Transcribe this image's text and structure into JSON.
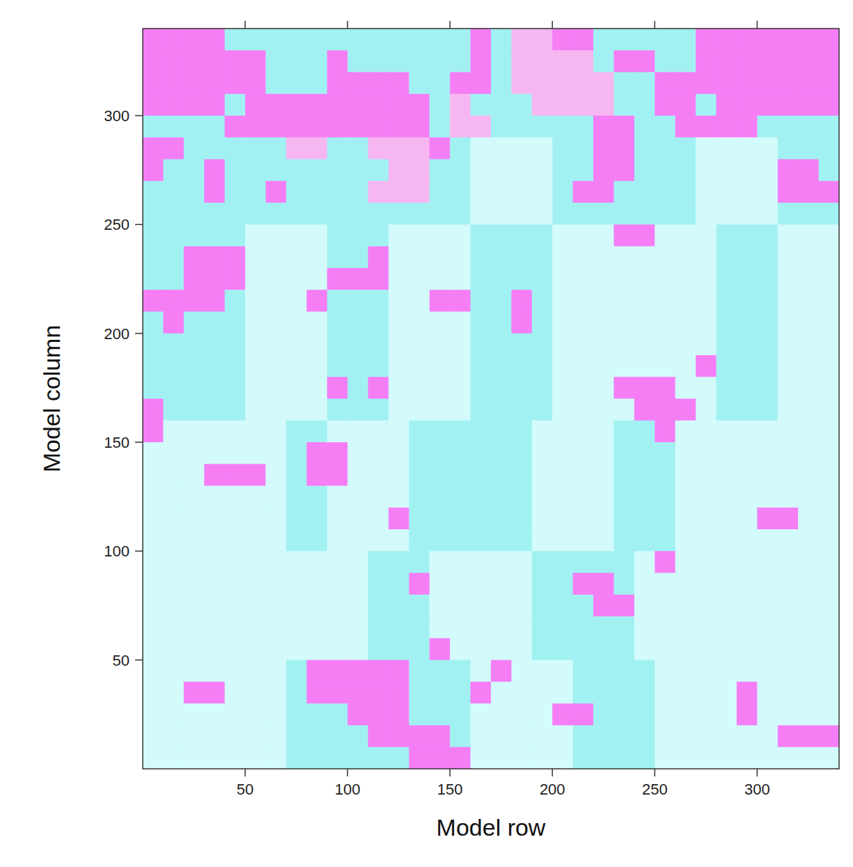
{
  "chart_data": {
    "type": "heatmap",
    "xlabel": "Model row",
    "ylabel": "Model column",
    "xlim": [
      0,
      340
    ],
    "ylim": [
      0,
      340
    ],
    "xticks": [
      50,
      100,
      150,
      200,
      250,
      300
    ],
    "yticks": [
      50,
      100,
      150,
      200,
      250,
      300
    ],
    "levels": [
      1,
      2,
      3,
      4
    ],
    "colors": [
      "#a2f1f2",
      "#d3fbfb",
      "#f57ef5",
      "#f6b6f1"
    ],
    "x": [
      5,
      15,
      25,
      35,
      45,
      55,
      65,
      75,
      85,
      95,
      105,
      115,
      125,
      135,
      145,
      155,
      165,
      175,
      185,
      195,
      205,
      215,
      225,
      235,
      245,
      255,
      265,
      275,
      285,
      295,
      305,
      315,
      325,
      335
    ],
    "y": [
      335,
      325,
      315,
      305,
      295,
      285,
      275,
      265,
      255,
      245,
      235,
      225,
      215,
      205,
      195,
      185,
      175,
      165,
      155,
      145,
      135,
      125,
      115,
      105,
      95,
      85,
      75,
      65,
      55,
      45,
      35,
      25,
      15,
      5
    ],
    "cells": [
      [
        3,
        3,
        3,
        3,
        1,
        1,
        1,
        1,
        1,
        1,
        1,
        1,
        1,
        1,
        1,
        1,
        3,
        1,
        4,
        4,
        3,
        3,
        1,
        1,
        1,
        1,
        1,
        3,
        3,
        3,
        3,
        3,
        3,
        3
      ],
      [
        3,
        3,
        3,
        3,
        3,
        3,
        1,
        1,
        1,
        3,
        1,
        1,
        1,
        1,
        1,
        1,
        3,
        1,
        4,
        4,
        4,
        4,
        1,
        3,
        3,
        1,
        1,
        3,
        3,
        3,
        3,
        3,
        3,
        3
      ],
      [
        3,
        3,
        3,
        3,
        3,
        3,
        1,
        1,
        1,
        3,
        3,
        3,
        3,
        1,
        1,
        3,
        3,
        1,
        4,
        4,
        4,
        4,
        4,
        1,
        1,
        3,
        3,
        3,
        3,
        3,
        3,
        3,
        3,
        3
      ],
      [
        3,
        3,
        3,
        3,
        1,
        3,
        3,
        3,
        3,
        3,
        3,
        3,
        3,
        3,
        1,
        4,
        1,
        1,
        1,
        4,
        4,
        4,
        4,
        1,
        1,
        3,
        3,
        1,
        3,
        3,
        3,
        3,
        3,
        3
      ],
      [
        1,
        1,
        1,
        1,
        3,
        3,
        3,
        3,
        3,
        3,
        3,
        3,
        3,
        3,
        1,
        4,
        4,
        1,
        1,
        1,
        1,
        1,
        3,
        3,
        1,
        1,
        3,
        3,
        3,
        3,
        1,
        1,
        1,
        1
      ],
      [
        3,
        3,
        1,
        1,
        1,
        1,
        1,
        4,
        4,
        1,
        1,
        4,
        4,
        4,
        3,
        1,
        2,
        2,
        2,
        2,
        1,
        1,
        3,
        3,
        1,
        1,
        1,
        2,
        2,
        2,
        2,
        1,
        1,
        1
      ],
      [
        3,
        1,
        1,
        3,
        1,
        1,
        1,
        1,
        1,
        1,
        1,
        1,
        4,
        4,
        1,
        1,
        2,
        2,
        2,
        2,
        1,
        1,
        3,
        3,
        1,
        1,
        1,
        2,
        2,
        2,
        2,
        3,
        3,
        1
      ],
      [
        1,
        1,
        1,
        3,
        1,
        1,
        3,
        1,
        1,
        1,
        1,
        4,
        4,
        4,
        1,
        1,
        2,
        2,
        2,
        2,
        1,
        3,
        3,
        1,
        1,
        1,
        1,
        2,
        2,
        2,
        2,
        3,
        3,
        3
      ],
      [
        1,
        1,
        1,
        1,
        1,
        1,
        1,
        1,
        1,
        1,
        1,
        1,
        1,
        1,
        1,
        1,
        2,
        2,
        2,
        2,
        1,
        1,
        1,
        1,
        1,
        1,
        1,
        2,
        2,
        2,
        2,
        1,
        1,
        1
      ],
      [
        1,
        1,
        1,
        1,
        1,
        2,
        2,
        2,
        2,
        1,
        1,
        1,
        2,
        2,
        2,
        2,
        1,
        1,
        1,
        1,
        2,
        2,
        2,
        3,
        3,
        2,
        2,
        2,
        1,
        1,
        1,
        2,
        2,
        2
      ],
      [
        1,
        1,
        3,
        3,
        3,
        2,
        2,
        2,
        2,
        1,
        1,
        3,
        2,
        2,
        2,
        2,
        1,
        1,
        1,
        1,
        2,
        2,
        2,
        2,
        2,
        2,
        2,
        2,
        1,
        1,
        1,
        2,
        2,
        2
      ],
      [
        1,
        1,
        3,
        3,
        3,
        2,
        2,
        2,
        2,
        3,
        3,
        3,
        2,
        2,
        2,
        2,
        1,
        1,
        1,
        1,
        2,
        2,
        2,
        2,
        2,
        2,
        2,
        2,
        1,
        1,
        1,
        2,
        2,
        2
      ],
      [
        3,
        3,
        3,
        3,
        1,
        2,
        2,
        2,
        3,
        1,
        1,
        1,
        2,
        2,
        3,
        3,
        1,
        1,
        3,
        1,
        2,
        2,
        2,
        2,
        2,
        2,
        2,
        2,
        1,
        1,
        1,
        2,
        2,
        2
      ],
      [
        1,
        3,
        1,
        1,
        1,
        2,
        2,
        2,
        2,
        1,
        1,
        1,
        2,
        2,
        2,
        2,
        1,
        1,
        3,
        1,
        2,
        2,
        2,
        2,
        2,
        2,
        2,
        2,
        1,
        1,
        1,
        2,
        2,
        2
      ],
      [
        1,
        1,
        1,
        1,
        1,
        2,
        2,
        2,
        2,
        1,
        1,
        1,
        2,
        2,
        2,
        2,
        1,
        1,
        1,
        1,
        2,
        2,
        2,
        2,
        2,
        2,
        2,
        2,
        1,
        1,
        1,
        2,
        2,
        2
      ],
      [
        1,
        1,
        1,
        1,
        1,
        2,
        2,
        2,
        2,
        1,
        1,
        1,
        2,
        2,
        2,
        2,
        1,
        1,
        1,
        1,
        2,
        2,
        2,
        2,
        2,
        2,
        2,
        3,
        1,
        1,
        1,
        2,
        2,
        2
      ],
      [
        1,
        1,
        1,
        1,
        1,
        2,
        2,
        2,
        2,
        3,
        1,
        3,
        2,
        2,
        2,
        2,
        1,
        1,
        1,
        1,
        2,
        2,
        2,
        3,
        3,
        3,
        2,
        2,
        1,
        1,
        1,
        2,
        2,
        2
      ],
      [
        3,
        1,
        1,
        1,
        1,
        2,
        2,
        2,
        2,
        1,
        1,
        1,
        2,
        2,
        2,
        2,
        1,
        1,
        1,
        1,
        2,
        2,
        2,
        2,
        3,
        3,
        3,
        2,
        1,
        1,
        1,
        2,
        2,
        2
      ],
      [
        3,
        2,
        2,
        2,
        2,
        2,
        2,
        1,
        1,
        2,
        2,
        2,
        2,
        1,
        1,
        1,
        1,
        1,
        1,
        2,
        2,
        2,
        2,
        1,
        1,
        3,
        2,
        2,
        2,
        2,
        2,
        2,
        2,
        2
      ],
      [
        2,
        2,
        2,
        2,
        2,
        2,
        2,
        1,
        3,
        3,
        2,
        2,
        2,
        1,
        1,
        1,
        1,
        1,
        1,
        2,
        2,
        2,
        2,
        1,
        1,
        1,
        2,
        2,
        2,
        2,
        2,
        2,
        2,
        2
      ],
      [
        2,
        2,
        2,
        3,
        3,
        3,
        2,
        1,
        3,
        3,
        2,
        2,
        2,
        1,
        1,
        1,
        1,
        1,
        1,
        2,
        2,
        2,
        2,
        1,
        1,
        1,
        2,
        2,
        2,
        2,
        2,
        2,
        2,
        2
      ],
      [
        2,
        2,
        2,
        2,
        2,
        2,
        2,
        1,
        1,
        2,
        2,
        2,
        2,
        1,
        1,
        1,
        1,
        1,
        1,
        2,
        2,
        2,
        2,
        1,
        1,
        1,
        2,
        2,
        2,
        2,
        2,
        2,
        2,
        2
      ],
      [
        2,
        2,
        2,
        2,
        2,
        2,
        2,
        1,
        1,
        2,
        2,
        2,
        3,
        1,
        1,
        1,
        1,
        1,
        1,
        2,
        2,
        2,
        2,
        1,
        1,
        1,
        2,
        2,
        2,
        2,
        3,
        3,
        2,
        2
      ],
      [
        2,
        2,
        2,
        2,
        2,
        2,
        2,
        1,
        1,
        2,
        2,
        2,
        2,
        1,
        1,
        1,
        1,
        1,
        1,
        2,
        2,
        2,
        2,
        1,
        1,
        1,
        2,
        2,
        2,
        2,
        2,
        2,
        2,
        2
      ],
      [
        2,
        2,
        2,
        2,
        2,
        2,
        2,
        2,
        2,
        2,
        2,
        1,
        1,
        1,
        2,
        2,
        2,
        2,
        2,
        1,
        1,
        1,
        1,
        1,
        2,
        3,
        2,
        2,
        2,
        2,
        2,
        2,
        2,
        2
      ],
      [
        2,
        2,
        2,
        2,
        2,
        2,
        2,
        2,
        2,
        2,
        2,
        1,
        1,
        3,
        2,
        2,
        2,
        2,
        2,
        1,
        1,
        3,
        3,
        1,
        2,
        2,
        2,
        2,
        2,
        2,
        2,
        2,
        2,
        2
      ],
      [
        2,
        2,
        2,
        2,
        2,
        2,
        2,
        2,
        2,
        2,
        2,
        1,
        1,
        1,
        2,
        2,
        2,
        2,
        2,
        1,
        1,
        1,
        3,
        3,
        2,
        2,
        2,
        2,
        2,
        2,
        2,
        2,
        2,
        2
      ],
      [
        2,
        2,
        2,
        2,
        2,
        2,
        2,
        2,
        2,
        2,
        2,
        1,
        1,
        1,
        2,
        2,
        2,
        2,
        2,
        1,
        1,
        1,
        1,
        1,
        2,
        2,
        2,
        2,
        2,
        2,
        2,
        2,
        2,
        2
      ],
      [
        2,
        2,
        2,
        2,
        2,
        2,
        2,
        2,
        2,
        2,
        2,
        1,
        1,
        1,
        3,
        2,
        2,
        2,
        2,
        1,
        1,
        1,
        1,
        1,
        2,
        2,
        2,
        2,
        2,
        2,
        2,
        2,
        2,
        2
      ],
      [
        2,
        2,
        2,
        2,
        2,
        2,
        2,
        1,
        3,
        3,
        3,
        3,
        3,
        1,
        1,
        1,
        2,
        3,
        2,
        2,
        2,
        1,
        1,
        1,
        1,
        2,
        2,
        2,
        2,
        2,
        2,
        2,
        2,
        2
      ],
      [
        2,
        2,
        3,
        3,
        2,
        2,
        2,
        1,
        3,
        3,
        3,
        3,
        3,
        1,
        1,
        1,
        3,
        2,
        2,
        2,
        2,
        1,
        1,
        1,
        1,
        2,
        2,
        2,
        2,
        3,
        2,
        2,
        2,
        2
      ],
      [
        2,
        2,
        2,
        2,
        2,
        2,
        2,
        1,
        1,
        1,
        3,
        3,
        3,
        1,
        1,
        1,
        2,
        2,
        2,
        2,
        3,
        3,
        1,
        1,
        1,
        2,
        2,
        2,
        2,
        3,
        2,
        2,
        2,
        2
      ],
      [
        2,
        2,
        2,
        2,
        2,
        2,
        2,
        1,
        1,
        1,
        1,
        3,
        3,
        3,
        3,
        1,
        2,
        2,
        2,
        2,
        2,
        1,
        1,
        1,
        1,
        2,
        2,
        2,
        2,
        2,
        2,
        3,
        3,
        3
      ],
      [
        2,
        2,
        2,
        2,
        2,
        2,
        2,
        1,
        1,
        1,
        1,
        1,
        1,
        3,
        3,
        3,
        2,
        2,
        2,
        2,
        2,
        1,
        1,
        1,
        1,
        2,
        2,
        2,
        2,
        2,
        2,
        2,
        2,
        2
      ]
    ]
  }
}
